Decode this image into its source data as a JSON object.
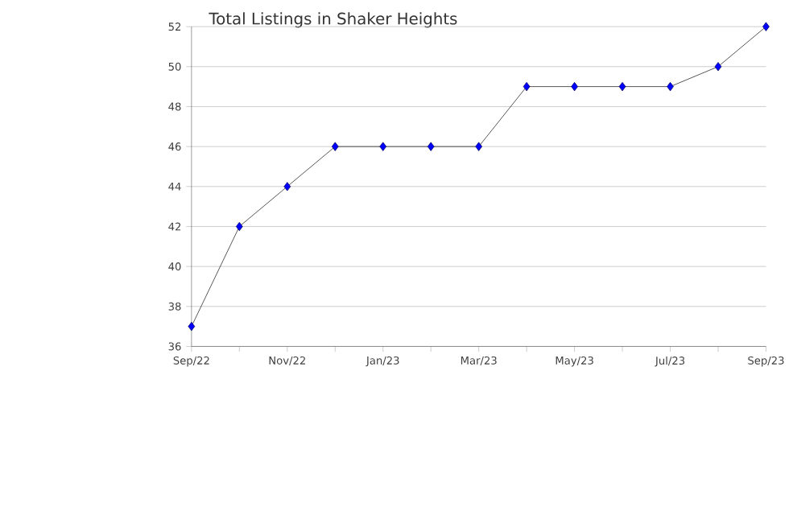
{
  "chart_data": {
    "type": "line",
    "title": "Total Listings in Shaker Heights",
    "categories": [
      "Sep/22",
      null,
      "Nov/22",
      null,
      "Jan/23",
      null,
      "Mar/23",
      null,
      "May/23",
      null,
      "Jul/23",
      null,
      "Sep/23"
    ],
    "series": [
      {
        "color": "#0000ff",
        "values": [
          37,
          42,
          44,
          46,
          46,
          46,
          46,
          49,
          49,
          49,
          49,
          50,
          52
        ]
      }
    ],
    "ylim": [
      36,
      52
    ],
    "yticks": [
      36,
      38,
      40,
      42,
      44,
      46,
      48,
      50,
      52
    ],
    "grid": "y",
    "marker": "diamond",
    "line_style": "solid"
  }
}
